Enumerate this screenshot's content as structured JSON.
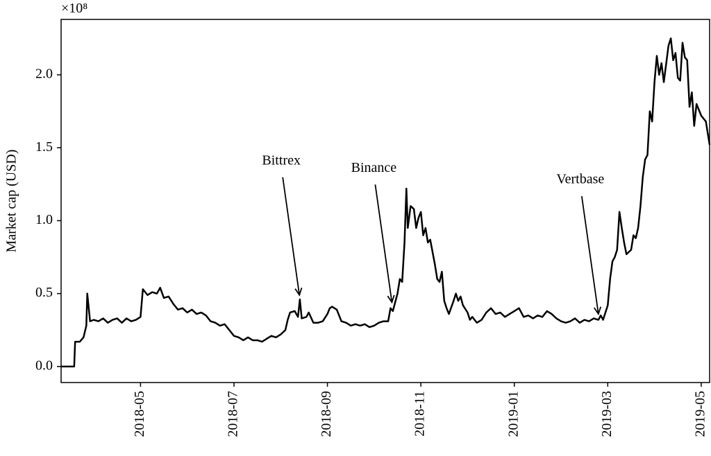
{
  "chart_data": {
    "type": "line",
    "ylabel": "Market cap (USD)",
    "offset_text": "×10⁸",
    "color": "#000000",
    "x": [
      3.3,
      3.58,
      3.6,
      3.7,
      3.78,
      3.84,
      3.86,
      3.92,
      4.0,
      4.1,
      4.2,
      4.3,
      4.4,
      4.5,
      4.6,
      4.7,
      4.8,
      4.9,
      5.0,
      5.05,
      5.15,
      5.25,
      5.35,
      5.42,
      5.5,
      5.6,
      5.7,
      5.8,
      5.9,
      6.0,
      6.1,
      6.2,
      6.3,
      6.4,
      6.5,
      6.6,
      6.7,
      6.8,
      6.9,
      7.0,
      7.1,
      7.2,
      7.3,
      7.4,
      7.5,
      7.6,
      7.7,
      7.8,
      7.9,
      8.0,
      8.1,
      8.15,
      8.2,
      8.3,
      8.37,
      8.41,
      8.45,
      8.55,
      8.6,
      8.7,
      8.8,
      8.9,
      9.0,
      9.05,
      9.1,
      9.2,
      9.3,
      9.4,
      9.5,
      9.6,
      9.7,
      9.8,
      9.9,
      10.0,
      10.1,
      10.2,
      10.3,
      10.35,
      10.4,
      10.5,
      10.55,
      10.6,
      10.65,
      10.69,
      10.72,
      10.78,
      10.85,
      10.9,
      10.95,
      11.0,
      11.05,
      11.1,
      11.15,
      11.2,
      11.3,
      11.35,
      11.4,
      11.45,
      11.5,
      11.55,
      11.6,
      11.7,
      11.75,
      11.8,
      11.85,
      11.9,
      12.0,
      12.05,
      12.1,
      12.2,
      12.3,
      12.4,
      12.5,
      12.6,
      12.7,
      12.8,
      12.9,
      13.0,
      13.1,
      13.2,
      13.3,
      13.4,
      13.5,
      13.6,
      13.7,
      13.8,
      13.9,
      14.0,
      14.1,
      14.2,
      14.3,
      14.4,
      14.5,
      14.6,
      14.7,
      14.8,
      14.85,
      14.9,
      15.0,
      15.05,
      15.1,
      15.15,
      15.2,
      15.25,
      15.3,
      15.35,
      15.4,
      15.5,
      15.55,
      15.6,
      15.65,
      15.7,
      15.75,
      15.8,
      15.85,
      15.9,
      15.95,
      16.0,
      16.05,
      16.1,
      16.15,
      16.2,
      16.3,
      16.35,
      16.4,
      16.45,
      16.5,
      16.55,
      16.6,
      16.65,
      16.7,
      16.75,
      16.8,
      16.85,
      16.9,
      17.0,
      17.1,
      17.18
    ],
    "values": [
      0,
      0,
      0.17,
      0.17,
      0.2,
      0.28,
      0.5,
      0.31,
      0.32,
      0.31,
      0.33,
      0.3,
      0.32,
      0.33,
      0.3,
      0.33,
      0.31,
      0.32,
      0.34,
      0.53,
      0.49,
      0.51,
      0.5,
      0.54,
      0.47,
      0.48,
      0.43,
      0.39,
      0.4,
      0.37,
      0.39,
      0.36,
      0.37,
      0.35,
      0.31,
      0.3,
      0.28,
      0.29,
      0.25,
      0.21,
      0.2,
      0.18,
      0.2,
      0.18,
      0.18,
      0.17,
      0.19,
      0.21,
      0.2,
      0.22,
      0.25,
      0.32,
      0.37,
      0.38,
      0.34,
      0.46,
      0.33,
      0.34,
      0.37,
      0.3,
      0.3,
      0.31,
      0.36,
      0.4,
      0.41,
      0.39,
      0.31,
      0.3,
      0.28,
      0.29,
      0.28,
      0.29,
      0.27,
      0.28,
      0.3,
      0.31,
      0.31,
      0.4,
      0.38,
      0.5,
      0.6,
      0.58,
      0.85,
      1.22,
      0.95,
      1.1,
      1.08,
      0.95,
      1.02,
      1.06,
      0.9,
      0.95,
      0.85,
      0.87,
      0.7,
      0.6,
      0.58,
      0.65,
      0.45,
      0.4,
      0.36,
      0.45,
      0.5,
      0.45,
      0.48,
      0.42,
      0.37,
      0.32,
      0.34,
      0.3,
      0.32,
      0.37,
      0.4,
      0.36,
      0.37,
      0.34,
      0.36,
      0.38,
      0.4,
      0.34,
      0.35,
      0.33,
      0.35,
      0.34,
      0.38,
      0.36,
      0.33,
      0.31,
      0.3,
      0.31,
      0.33,
      0.3,
      0.32,
      0.31,
      0.33,
      0.32,
      0.35,
      0.32,
      0.42,
      0.6,
      0.72,
      0.75,
      0.8,
      1.06,
      0.95,
      0.85,
      0.77,
      0.8,
      0.9,
      0.88,
      0.95,
      1.1,
      1.3,
      1.42,
      1.45,
      1.75,
      1.68,
      1.95,
      2.13,
      2.0,
      2.08,
      1.95,
      2.2,
      2.25,
      2.1,
      2.15,
      1.98,
      1.96,
      2.22,
      2.12,
      2.1,
      1.78,
      1.88,
      1.65,
      1.8,
      1.72,
      1.68,
      1.52
    ],
    "xlim": [
      3.3,
      17.18
    ],
    "ylim": [
      -0.11,
      2.38
    ],
    "xticks": [
      {
        "value": 5,
        "label": "2018-05"
      },
      {
        "value": 7,
        "label": "2018-07"
      },
      {
        "value": 9,
        "label": "2018-09"
      },
      {
        "value": 11,
        "label": "2018-11"
      },
      {
        "value": 13,
        "label": "2019-01"
      },
      {
        "value": 15,
        "label": "2019-03"
      },
      {
        "value": 17,
        "label": "2019-05"
      }
    ],
    "yticks": [
      {
        "value": 0,
        "label": "0.0"
      },
      0.5,
      {
        "value": 1,
        "label": "1.0"
      },
      1.5,
      {
        "value": 2,
        "label": "2.0"
      }
    ],
    "annotations": [
      {
        "text": "Bittrex",
        "x": 8.4,
        "y": 0.49
      },
      {
        "text": "Binance",
        "x": 10.38,
        "y": 0.44
      },
      {
        "text": "Vertbase",
        "x": 14.8,
        "y": 0.36
      }
    ]
  }
}
